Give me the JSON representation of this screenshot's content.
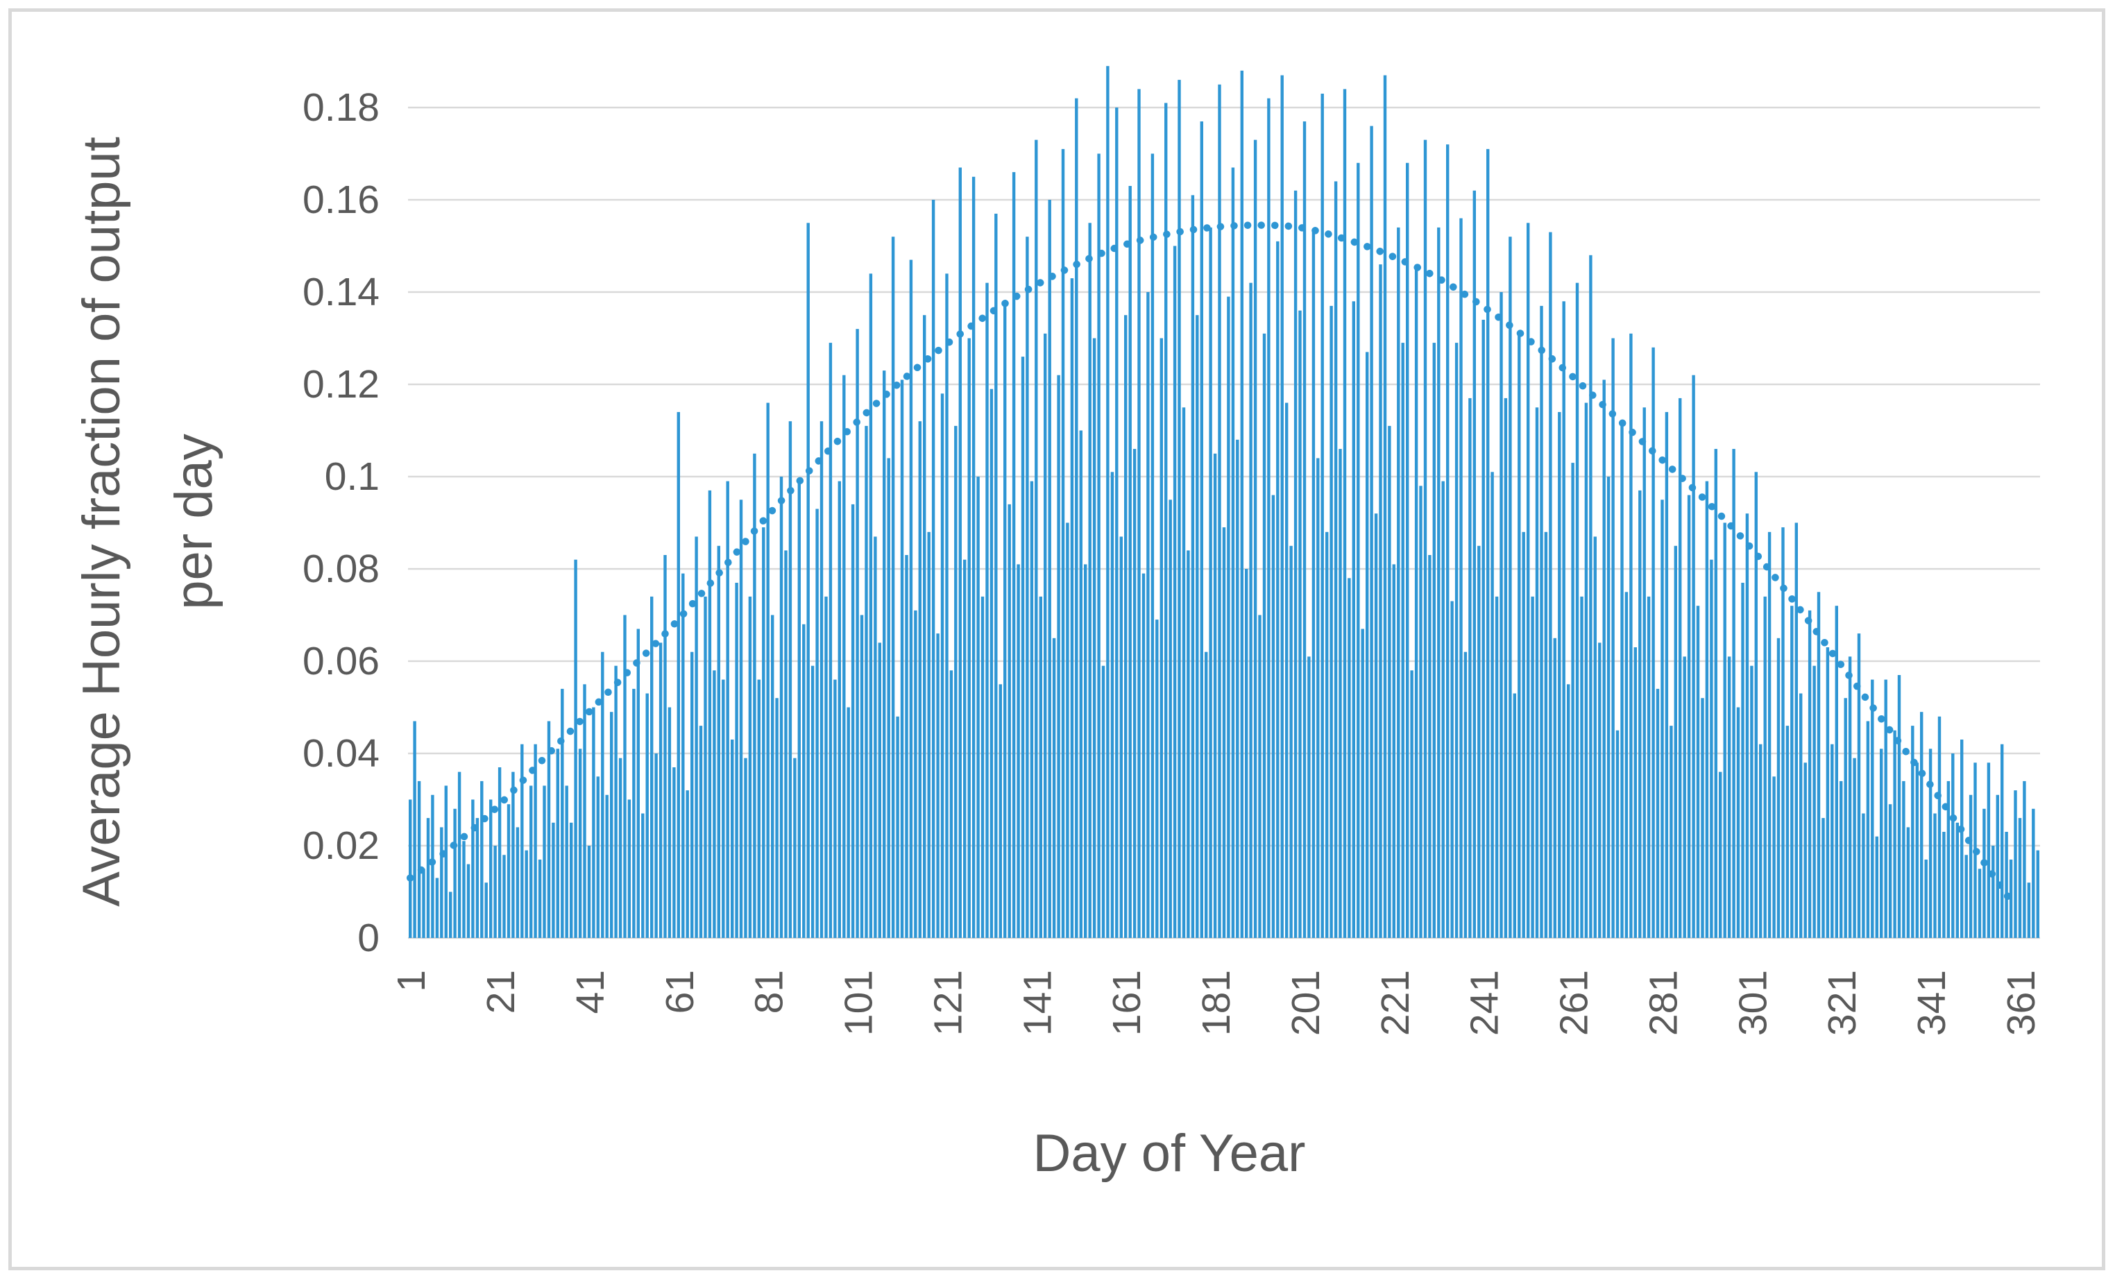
{
  "chart_data": {
    "type": "bar",
    "title": "",
    "xlabel": "Day of Year",
    "ylabel_line1": "Average Hourly fraction of output",
    "ylabel_line2": "per day",
    "x_axis_label_rotation_deg": -90,
    "xlim": [
      1,
      365
    ],
    "ylim": [
      0,
      0.19
    ],
    "grid": true,
    "legend": "none",
    "bar_color": "#2E96D4",
    "trend_color": "#2E96D4",
    "gridline_color": "#D9D9D9",
    "axis_line_color": "#D9D9D9",
    "text_color": "#595959",
    "frame_border_color": "#D9D9D9",
    "x_ticks": [
      1,
      21,
      41,
      61,
      81,
      101,
      121,
      141,
      161,
      181,
      201,
      221,
      241,
      261,
      281,
      301,
      321,
      341,
      361
    ],
    "y_ticks": [
      {
        "v": 0,
        "label": "0"
      },
      {
        "v": 0.02,
        "label": "0.02"
      },
      {
        "v": 0.04,
        "label": "0.04"
      },
      {
        "v": 0.06,
        "label": "0.06"
      },
      {
        "v": 0.08,
        "label": "0.08"
      },
      {
        "v": 0.1,
        "label": "0.1"
      },
      {
        "v": 0.12,
        "label": "0.12"
      },
      {
        "v": 0.14,
        "label": "0.14"
      },
      {
        "v": 0.16,
        "label": "0.16"
      },
      {
        "v": 0.18,
        "label": "0.18"
      }
    ],
    "series": [
      {
        "name": "daily-average-hourly-fraction",
        "type": "bar",
        "x_start_day": 1,
        "values": [
          0.03,
          0.047,
          0.034,
          0.015,
          0.026,
          0.031,
          0.013,
          0.024,
          0.033,
          0.01,
          0.028,
          0.036,
          0.021,
          0.016,
          0.03,
          0.026,
          0.034,
          0.012,
          0.03,
          0.02,
          0.037,
          0.018,
          0.029,
          0.036,
          0.024,
          0.042,
          0.019,
          0.033,
          0.042,
          0.017,
          0.033,
          0.047,
          0.025,
          0.041,
          0.054,
          0.033,
          0.025,
          0.082,
          0.041,
          0.055,
          0.02,
          0.05,
          0.035,
          0.062,
          0.031,
          0.049,
          0.059,
          0.039,
          0.07,
          0.03,
          0.054,
          0.067,
          0.027,
          0.053,
          0.074,
          0.04,
          0.064,
          0.083,
          0.05,
          0.037,
          0.114,
          0.079,
          0.032,
          0.062,
          0.087,
          0.046,
          0.074,
          0.097,
          0.058,
          0.085,
          0.056,
          0.099,
          0.043,
          0.077,
          0.095,
          0.039,
          0.074,
          0.105,
          0.056,
          0.089,
          0.116,
          0.07,
          0.052,
          0.1,
          0.084,
          0.112,
          0.039,
          0.099,
          0.068,
          0.155,
          0.059,
          0.093,
          0.112,
          0.074,
          0.129,
          0.056,
          0.099,
          0.122,
          0.05,
          0.094,
          0.132,
          0.07,
          0.111,
          0.144,
          0.087,
          0.064,
          0.123,
          0.104,
          0.152,
          0.048,
          0.121,
          0.083,
          0.147,
          0.071,
          0.112,
          0.135,
          0.088,
          0.16,
          0.066,
          0.118,
          0.144,
          0.058,
          0.111,
          0.167,
          0.082,
          0.13,
          0.165,
          0.1,
          0.074,
          0.142,
          0.119,
          0.157,
          0.055,
          0.137,
          0.094,
          0.166,
          0.081,
          0.126,
          0.152,
          0.099,
          0.173,
          0.074,
          0.131,
          0.16,
          0.065,
          0.122,
          0.171,
          0.09,
          0.143,
          0.182,
          0.11,
          0.081,
          0.155,
          0.13,
          0.17,
          0.059,
          0.189,
          0.101,
          0.18,
          0.087,
          0.135,
          0.163,
          0.106,
          0.184,
          0.079,
          0.14,
          0.17,
          0.069,
          0.13,
          0.181,
          0.095,
          0.15,
          0.186,
          0.115,
          0.084,
          0.161,
          0.135,
          0.177,
          0.062,
          0.154,
          0.105,
          0.185,
          0.089,
          0.139,
          0.167,
          0.108,
          0.188,
          0.08,
          0.142,
          0.173,
          0.07,
          0.131,
          0.182,
          0.096,
          0.151,
          0.187,
          0.116,
          0.085,
          0.162,
          0.136,
          0.177,
          0.061,
          0.153,
          0.104,
          0.183,
          0.088,
          0.137,
          0.164,
          0.106,
          0.184,
          0.078,
          0.138,
          0.168,
          0.067,
          0.127,
          0.176,
          0.092,
          0.146,
          0.187,
          0.111,
          0.081,
          0.154,
          0.129,
          0.168,
          0.058,
          0.145,
          0.098,
          0.173,
          0.083,
          0.129,
          0.154,
          0.099,
          0.172,
          0.073,
          0.129,
          0.156,
          0.062,
          0.117,
          0.162,
          0.085,
          0.134,
          0.171,
          0.101,
          0.074,
          0.14,
          0.117,
          0.152,
          0.053,
          0.131,
          0.088,
          0.155,
          0.074,
          0.115,
          0.137,
          0.088,
          0.153,
          0.065,
          0.114,
          0.138,
          0.055,
          0.103,
          0.142,
          0.074,
          0.116,
          0.148,
          0.087,
          0.064,
          0.121,
          0.1,
          0.13,
          0.045,
          0.111,
          0.075,
          0.131,
          0.063,
          0.097,
          0.115,
          0.074,
          0.128,
          0.054,
          0.095,
          0.114,
          0.046,
          0.085,
          0.117,
          0.061,
          0.096,
          0.122,
          0.072,
          0.052,
          0.099,
          0.082,
          0.106,
          0.036,
          0.09,
          0.061,
          0.106,
          0.05,
          0.077,
          0.092,
          0.059,
          0.101,
          0.042,
          0.074,
          0.088,
          0.035,
          0.065,
          0.089,
          0.046,
          0.072,
          0.09,
          0.053,
          0.038,
          0.071,
          0.059,
          0.075,
          0.026,
          0.063,
          0.042,
          0.072,
          0.034,
          0.052,
          0.061,
          0.039,
          0.066,
          0.027,
          0.047,
          0.056,
          0.022,
          0.041,
          0.056,
          0.029,
          0.045,
          0.057,
          0.034,
          0.024,
          0.046,
          0.038,
          0.049,
          0.017,
          0.041,
          0.027,
          0.048,
          0.023,
          0.034,
          0.04,
          0.025,
          0.043,
          0.018,
          0.031,
          0.038,
          0.015,
          0.028,
          0.038,
          0.02,
          0.031,
          0.042,
          0.023,
          0.017,
          0.032,
          0.026,
          0.034,
          0.012,
          0.028,
          0.019
        ]
      },
      {
        "name": "seasonal-trend-dotted-line",
        "type": "dotted-line",
        "points": [
          [
            1,
            0.013
          ],
          [
            10,
            0.0195
          ],
          [
            20,
            0.028
          ],
          [
            30,
            0.038
          ],
          [
            40,
            0.048
          ],
          [
            50,
            0.058
          ],
          [
            60,
            0.068
          ],
          [
            70,
            0.079
          ],
          [
            80,
            0.0905
          ],
          [
            90,
            0.101
          ],
          [
            100,
            0.111
          ],
          [
            110,
            0.12
          ],
          [
            120,
            0.128
          ],
          [
            130,
            0.135
          ],
          [
            140,
            0.141
          ],
          [
            150,
            0.146
          ],
          [
            160,
            0.15
          ],
          [
            170,
            0.1525
          ],
          [
            180,
            0.154
          ],
          [
            190,
            0.1545
          ],
          [
            200,
            0.154
          ],
          [
            210,
            0.1515
          ],
          [
            220,
            0.148
          ],
          [
            230,
            0.1435
          ],
          [
            240,
            0.1375
          ],
          [
            250,
            0.1305
          ],
          [
            260,
            0.1225
          ],
          [
            270,
            0.1135
          ],
          [
            280,
            0.1045
          ],
          [
            290,
            0.0955
          ],
          [
            300,
            0.0855
          ],
          [
            310,
            0.0735
          ],
          [
            320,
            0.0605
          ],
          [
            330,
            0.0475
          ],
          [
            340,
            0.0345
          ],
          [
            350,
            0.0205
          ],
          [
            359,
            0.008
          ]
        ]
      }
    ]
  }
}
